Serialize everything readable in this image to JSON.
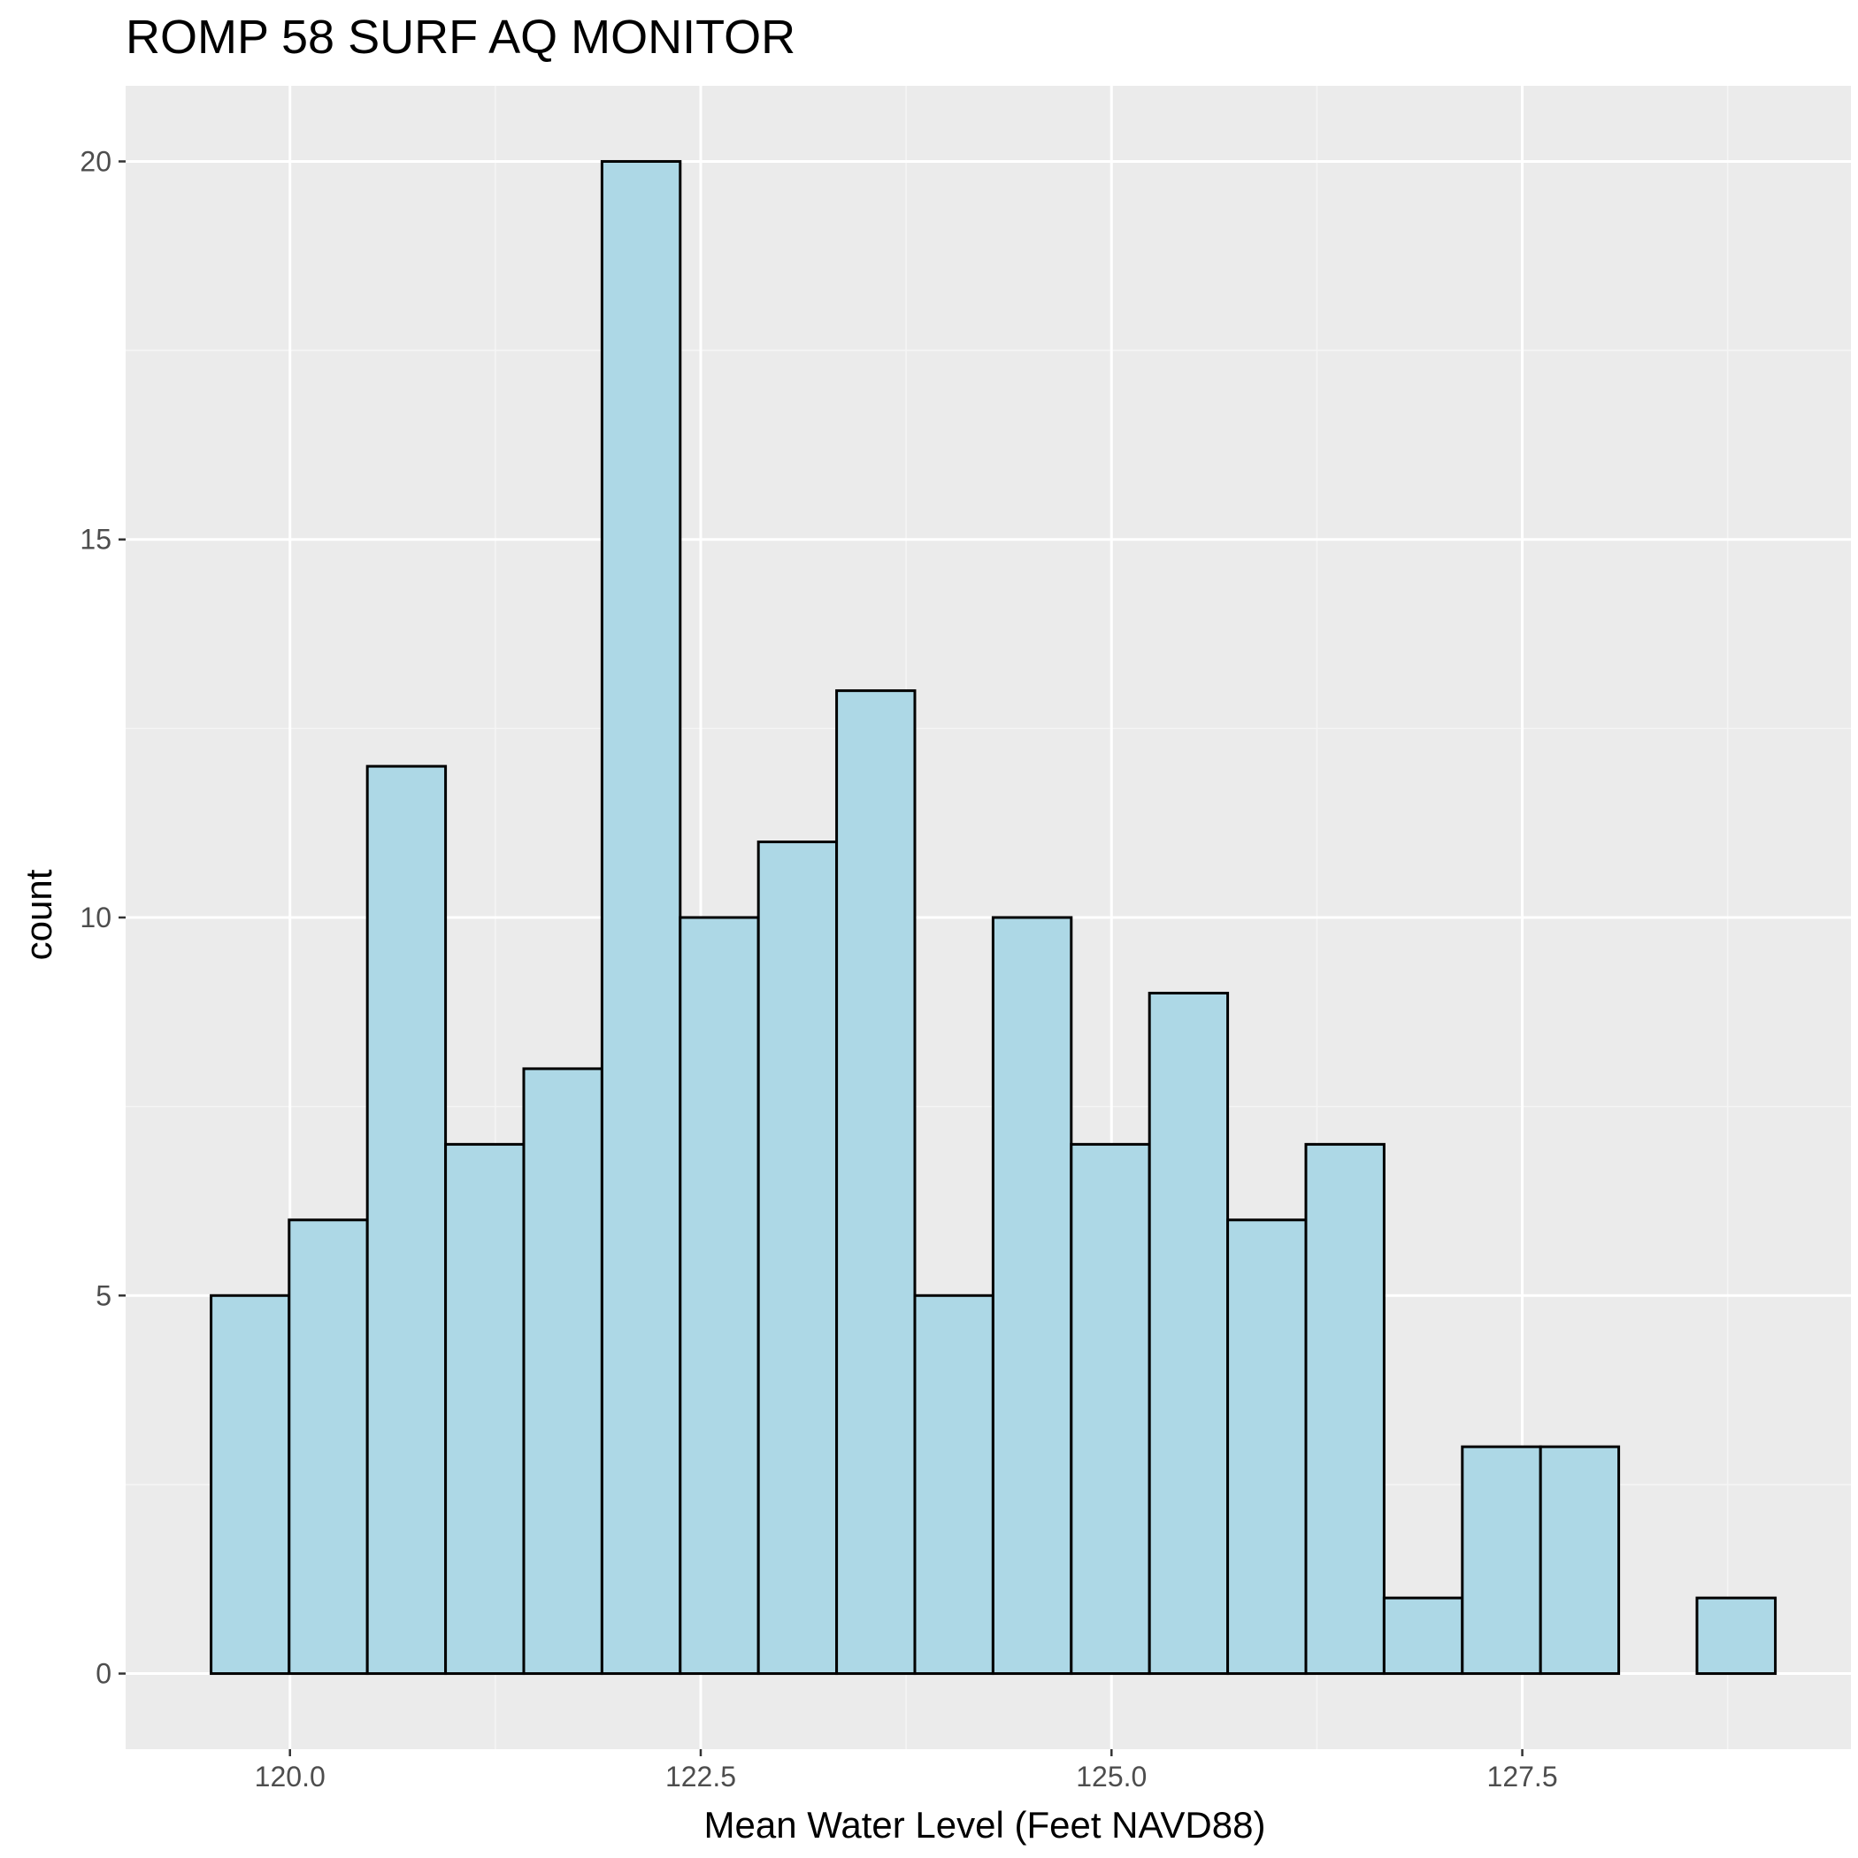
{
  "chart_data": {
    "type": "histogram",
    "title": "ROMP 58 SURF AQ MONITOR",
    "xlabel": "Mean Water Level (Feet NAVD88)",
    "ylabel": "count",
    "xlim": [
      119.0,
      129.5
    ],
    "ylim": [
      -1.0,
      21.0
    ],
    "x_ticks": [
      120.0,
      122.5,
      125.0,
      127.5
    ],
    "x_tick_labels": [
      "120.0",
      "122.5",
      "125.0",
      "127.5"
    ],
    "y_ticks": [
      0,
      5,
      10,
      15,
      20
    ],
    "y_tick_labels": [
      "0",
      "5",
      "10",
      "15",
      "20"
    ],
    "bin_width": 0.476,
    "bins": [
      {
        "start": 119.52,
        "end": 119.995,
        "count": 5
      },
      {
        "start": 119.995,
        "end": 120.471,
        "count": 6
      },
      {
        "start": 120.471,
        "end": 120.947,
        "count": 12
      },
      {
        "start": 120.947,
        "end": 121.423,
        "count": 7
      },
      {
        "start": 121.423,
        "end": 121.899,
        "count": 8
      },
      {
        "start": 121.899,
        "end": 122.375,
        "count": 20
      },
      {
        "start": 122.375,
        "end": 122.851,
        "count": 10
      },
      {
        "start": 122.851,
        "end": 123.327,
        "count": 11
      },
      {
        "start": 123.327,
        "end": 123.803,
        "count": 13
      },
      {
        "start": 123.803,
        "end": 124.279,
        "count": 5
      },
      {
        "start": 124.279,
        "end": 124.755,
        "count": 10
      },
      {
        "start": 124.755,
        "end": 125.231,
        "count": 7
      },
      {
        "start": 125.231,
        "end": 125.707,
        "count": 9
      },
      {
        "start": 125.707,
        "end": 126.183,
        "count": 6
      },
      {
        "start": 126.183,
        "end": 126.659,
        "count": 7
      },
      {
        "start": 126.659,
        "end": 127.135,
        "count": 1
      },
      {
        "start": 127.135,
        "end": 127.611,
        "count": 3
      },
      {
        "start": 127.611,
        "end": 128.087,
        "count": 3
      },
      {
        "start": 128.087,
        "end": 128.563,
        "count": 0
      },
      {
        "start": 128.563,
        "end": 129.04,
        "count": 1
      }
    ],
    "grid": true,
    "legend": "none",
    "colors": {
      "panel_background": "#ebebeb",
      "grid_major": "#ffffff",
      "grid_minor": "#f5f5f5",
      "bar_fill": "#add8e6",
      "bar_outline": "#000000",
      "tick_label": "#4d4d4d",
      "tick_mark": "#333333"
    }
  }
}
